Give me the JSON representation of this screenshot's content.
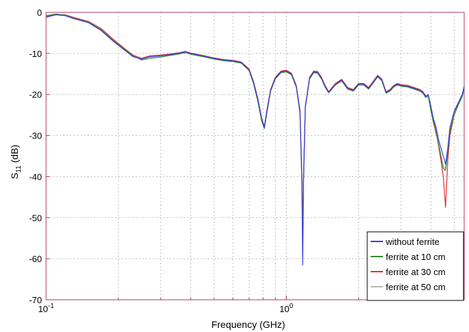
{
  "chart_data": {
    "type": "line",
    "title": "",
    "xlabel": "Frequency (GHz)",
    "ylabel_main": "S",
    "ylabel_sub": "11",
    "ylabel_unit": "(dB)",
    "x_scale": "log",
    "xlim": [
      0.1,
      5.5
    ],
    "ylim": [
      -70,
      0
    ],
    "x_ticks": [
      {
        "value": 0.1,
        "base": "10",
        "exp": "-1"
      },
      {
        "value": 1,
        "base": "10",
        "exp": "0"
      }
    ],
    "y_ticks": [
      0,
      -10,
      -20,
      -30,
      -40,
      -50,
      -60,
      -70
    ],
    "y_tick_labels": [
      "0",
      "-10",
      "-20",
      "-30",
      "-40",
      "-50",
      "-60",
      "-70"
    ],
    "grid": true,
    "legend_position": "bottom-right",
    "axis_color": "#b0336a",
    "series": [
      {
        "name": "without ferrite",
        "color": "#3a3ae0",
        "x": [
          0.1,
          0.11,
          0.12,
          0.13,
          0.15,
          0.17,
          0.19,
          0.21,
          0.23,
          0.25,
          0.27,
          0.3,
          0.33,
          0.36,
          0.38,
          0.4,
          0.45,
          0.5,
          0.55,
          0.6,
          0.65,
          0.7,
          0.73,
          0.76,
          0.79,
          0.81,
          0.83,
          0.86,
          0.9,
          0.95,
          1.0,
          1.05,
          1.1,
          1.14,
          1.16,
          1.17,
          1.18,
          1.2,
          1.25,
          1.3,
          1.35,
          1.4,
          1.45,
          1.5,
          1.6,
          1.7,
          1.8,
          1.9,
          2.0,
          2.1,
          2.2,
          2.3,
          2.4,
          2.5,
          2.6,
          2.7,
          2.8,
          2.9,
          3.0,
          3.2,
          3.4,
          3.6,
          3.7,
          3.8,
          3.9,
          4.0,
          4.1,
          4.2,
          4.3,
          4.4,
          4.5,
          4.6,
          4.7,
          4.8,
          5.0,
          5.2,
          5.4,
          5.5
        ],
        "y": [
          -1.2,
          -0.6,
          -0.8,
          -1.5,
          -2.5,
          -4.5,
          -7.0,
          -9.0,
          -10.8,
          -11.4,
          -10.8,
          -10.6,
          -10.3,
          -9.9,
          -9.6,
          -10.0,
          -10.6,
          -11.2,
          -11.6,
          -11.8,
          -12.2,
          -14.0,
          -17.0,
          -21.0,
          -26.0,
          -28.0,
          -24.0,
          -19.0,
          -16.0,
          -14.5,
          -14.3,
          -15.0,
          -18.0,
          -24.0,
          -40.0,
          -61.5,
          -40.0,
          -23.0,
          -16.0,
          -14.5,
          -14.6,
          -16.0,
          -18.0,
          -19.5,
          -17.5,
          -16.5,
          -18.5,
          -19.0,
          -17.5,
          -17.5,
          -18.5,
          -17.0,
          -15.5,
          -16.5,
          -19.5,
          -19.0,
          -18.0,
          -17.5,
          -17.8,
          -18.0,
          -18.5,
          -19.0,
          -19.5,
          -20.5,
          -20.0,
          -23.0,
          -26.0,
          -28.0,
          -31.0,
          -33.0,
          -35.0,
          -37.0,
          -33.0,
          -28.0,
          -24.0,
          -22.0,
          -20.0,
          -18.0
        ]
      },
      {
        "name": "ferrite at 10 cm",
        "color": "#2e8b2e",
        "x": [
          0.1,
          0.11,
          0.12,
          0.13,
          0.15,
          0.17,
          0.19,
          0.21,
          0.23,
          0.25,
          0.27,
          0.3,
          0.33,
          0.36,
          0.38,
          0.4,
          0.45,
          0.5,
          0.55,
          0.6,
          0.65,
          0.7,
          0.73,
          0.76,
          0.79,
          0.81,
          0.83,
          0.86,
          0.9,
          0.95,
          1.0,
          1.05,
          1.1,
          1.14,
          1.16,
          1.17,
          1.18,
          1.2,
          1.25,
          1.3,
          1.35,
          1.4,
          1.45,
          1.5,
          1.6,
          1.7,
          1.8,
          1.9,
          2.0,
          2.1,
          2.2,
          2.3,
          2.4,
          2.5,
          2.6,
          2.7,
          2.8,
          2.9,
          3.0,
          3.2,
          3.4,
          3.6,
          3.7,
          3.8,
          3.9,
          4.0,
          4.1,
          4.2,
          4.3,
          4.4,
          4.5,
          4.6,
          4.7,
          4.8,
          5.0,
          5.2,
          5.4,
          5.5
        ],
        "y": [
          -0.8,
          -0.4,
          -0.7,
          -1.4,
          -2.4,
          -4.3,
          -6.8,
          -8.8,
          -10.6,
          -11.6,
          -11.2,
          -10.9,
          -10.5,
          -10.1,
          -9.8,
          -10.2,
          -10.8,
          -11.4,
          -11.8,
          -12.0,
          -12.4,
          -14.2,
          -17.3,
          -21.5,
          -26.5,
          -28.3,
          -24.5,
          -19.2,
          -16.2,
          -14.7,
          -14.5,
          -15.2,
          -18.2,
          -24.5,
          -40.5,
          -56.0,
          -40.0,
          -23.2,
          -16.2,
          -14.7,
          -14.8,
          -16.2,
          -18.2,
          -19.6,
          -17.7,
          -16.7,
          -18.7,
          -19.2,
          -17.7,
          -17.7,
          -18.7,
          -17.2,
          -15.7,
          -16.7,
          -19.7,
          -19.2,
          -18.2,
          -17.7,
          -18.0,
          -18.2,
          -18.7,
          -19.2,
          -19.7,
          -20.7,
          -20.5,
          -24.0,
          -27.0,
          -29.5,
          -32.0,
          -35.0,
          -38.0,
          -38.5,
          -34.0,
          -29.0,
          -25.0,
          -22.5,
          -20.5,
          -18.5
        ]
      },
      {
        "name": "ferrite at 30 cm",
        "color": "#e03030",
        "x": [
          0.1,
          0.11,
          0.12,
          0.13,
          0.15,
          0.17,
          0.19,
          0.21,
          0.23,
          0.25,
          0.27,
          0.3,
          0.33,
          0.36,
          0.38,
          0.4,
          0.45,
          0.5,
          0.55,
          0.6,
          0.65,
          0.7,
          0.73,
          0.76,
          0.79,
          0.81,
          0.83,
          0.86,
          0.9,
          0.95,
          1.0,
          1.05,
          1.1,
          1.14,
          1.16,
          1.17,
          1.18,
          1.2,
          1.25,
          1.3,
          1.35,
          1.4,
          1.45,
          1.5,
          1.6,
          1.7,
          1.8,
          1.9,
          2.0,
          2.1,
          2.2,
          2.3,
          2.4,
          2.5,
          2.6,
          2.7,
          2.8,
          2.9,
          3.0,
          3.2,
          3.4,
          3.6,
          3.7,
          3.8,
          3.9,
          4.0,
          4.1,
          4.2,
          4.3,
          4.4,
          4.5,
          4.6,
          4.7,
          4.8,
          5.0,
          5.2,
          5.4,
          5.5
        ],
        "y": [
          -1.0,
          -0.5,
          -0.6,
          -1.2,
          -2.2,
          -4.0,
          -6.5,
          -8.6,
          -10.4,
          -11.2,
          -10.6,
          -10.4,
          -10.1,
          -9.8,
          -9.5,
          -9.9,
          -10.5,
          -11.1,
          -11.5,
          -11.7,
          -12.1,
          -13.8,
          -16.8,
          -20.8,
          -25.8,
          -27.8,
          -23.8,
          -18.8,
          -15.8,
          -14.3,
          -14.1,
          -14.8,
          -17.8,
          -23.8,
          -39.5,
          -52.0,
          -39.5,
          -22.8,
          -15.8,
          -14.3,
          -14.4,
          -15.8,
          -17.8,
          -19.3,
          -17.3,
          -16.3,
          -18.3,
          -18.8,
          -17.3,
          -17.3,
          -18.3,
          -16.8,
          -15.3,
          -16.3,
          -19.3,
          -18.8,
          -17.8,
          -17.3,
          -17.6,
          -17.8,
          -18.3,
          -18.8,
          -19.3,
          -20.3,
          -20.2,
          -23.5,
          -26.5,
          -29.0,
          -32.5,
          -36.0,
          -40.0,
          -47.5,
          -36.0,
          -30.0,
          -25.0,
          -22.0,
          -20.0,
          -18.2
        ]
      },
      {
        "name": "ferrite at 50 cm",
        "color": "#b8b8b8",
        "x": [
          0.1,
          0.11,
          0.12,
          0.13,
          0.15,
          0.17,
          0.19,
          0.21,
          0.23,
          0.25,
          0.27,
          0.3,
          0.33,
          0.36,
          0.38,
          0.4,
          0.45,
          0.5,
          0.55,
          0.6,
          0.65,
          0.7,
          0.73,
          0.76,
          0.79,
          0.81,
          0.83,
          0.86,
          0.9,
          0.95,
          1.0,
          1.05,
          1.1,
          1.14,
          1.16,
          1.17,
          1.18,
          1.2,
          1.25,
          1.3,
          1.35,
          1.4,
          1.45,
          1.5,
          1.6,
          1.7,
          1.8,
          1.9,
          2.0,
          2.1,
          2.2,
          2.3,
          2.4,
          2.5,
          2.6,
          2.7,
          2.8,
          2.9,
          3.0,
          3.2,
          3.4,
          3.6,
          3.7,
          3.8,
          3.9,
          4.0,
          4.1,
          4.2,
          4.3,
          4.4,
          4.5,
          4.6,
          4.7,
          4.8,
          5.0,
          5.2,
          5.4,
          5.5
        ],
        "y": [
          -1.1,
          -0.5,
          -0.7,
          -1.3,
          -2.3,
          -4.2,
          -6.7,
          -8.7,
          -10.5,
          -11.3,
          -10.9,
          -10.7,
          -10.4,
          -10.0,
          -9.7,
          -10.1,
          -10.7,
          -11.3,
          -11.7,
          -11.9,
          -12.3,
          -14.1,
          -17.1,
          -21.2,
          -26.2,
          -28.1,
          -24.2,
          -19.1,
          -16.1,
          -14.6,
          -14.4,
          -15.1,
          -18.1,
          -24.2,
          -40.2,
          -55.0,
          -40.2,
          -23.1,
          -16.1,
          -14.6,
          -14.7,
          -16.1,
          -18.1,
          -19.5,
          -17.6,
          -16.6,
          -18.6,
          -19.1,
          -17.6,
          -17.6,
          -18.6,
          -17.1,
          -15.6,
          -16.6,
          -19.6,
          -19.1,
          -18.1,
          -17.6,
          -17.9,
          -18.1,
          -18.6,
          -19.1,
          -19.6,
          -20.6,
          -20.3,
          -23.8,
          -26.8,
          -29.2,
          -32.2,
          -34.5,
          -37.5,
          -38.0,
          -33.5,
          -28.5,
          -24.5,
          -22.2,
          -20.2,
          -18.3
        ]
      }
    ]
  }
}
